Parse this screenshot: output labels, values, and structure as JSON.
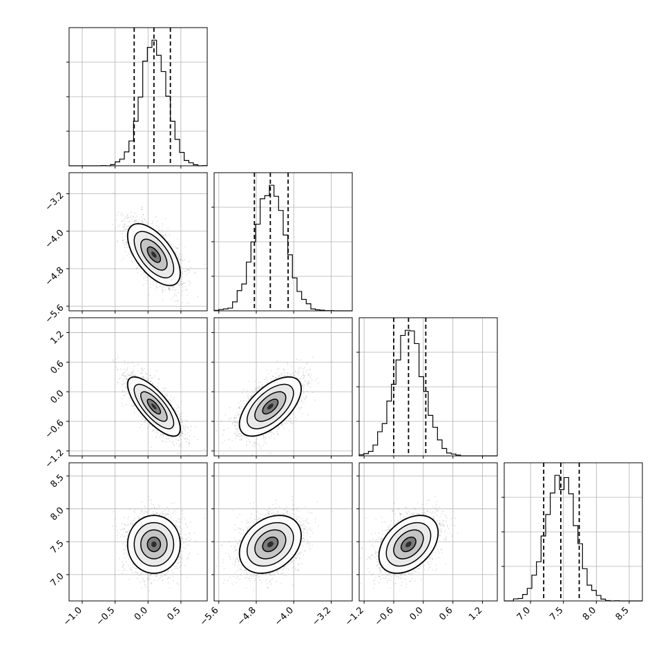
{
  "chart_data": {
    "type": "corner",
    "title": "",
    "grid": true,
    "parameters": [
      {
        "range": [
          -1.2,
          0.9
        ],
        "mean": 0.09,
        "quantiles": [
          -0.21,
          0.09,
          0.34
        ],
        "sd": 0.2,
        "ticks": [
          -1.0,
          -0.5,
          0.0,
          0.5
        ],
        "tick_labels": [
          "−1.0",
          "−0.5",
          "0.0",
          "0.5"
        ]
      },
      {
        "range": [
          -5.7,
          -2.75
        ],
        "mean": -4.5,
        "quantiles": [
          -4.84,
          -4.5,
          -4.12
        ],
        "sd": 0.33,
        "ticks": [
          -5.6,
          -4.8,
          -4.0,
          -3.2
        ],
        "tick_labels": [
          "−5.6",
          "−4.8",
          "−4.0",
          "−3.2"
        ]
      },
      {
        "range": [
          -1.3,
          1.5
        ],
        "mean": -0.3,
        "quantiles": [
          -0.6,
          -0.3,
          0.05
        ],
        "sd": 0.3,
        "ticks": [
          -1.2,
          -0.6,
          0.0,
          0.6,
          1.2
        ],
        "tick_labels": [
          "−1.2",
          "−0.6",
          "0.0",
          "0.6",
          "1.2"
        ]
      },
      {
        "range": [
          6.6,
          8.7
        ],
        "mean": 7.46,
        "quantiles": [
          7.2,
          7.46,
          7.74
        ],
        "sd": 0.22,
        "ticks": [
          7.0,
          7.5,
          8.0,
          8.5
        ],
        "tick_labels": [
          "7.0",
          "7.5",
          "8.0",
          "8.5"
        ]
      }
    ],
    "correlations": [
      [
        1.0,
        -0.6,
        -0.75,
        0.0
      ],
      [
        -0.6,
        1.0,
        0.6,
        0.3
      ],
      [
        -0.75,
        0.6,
        1.0,
        0.4
      ],
      [
        0.0,
        0.3,
        0.4,
        1.0
      ]
    ]
  }
}
